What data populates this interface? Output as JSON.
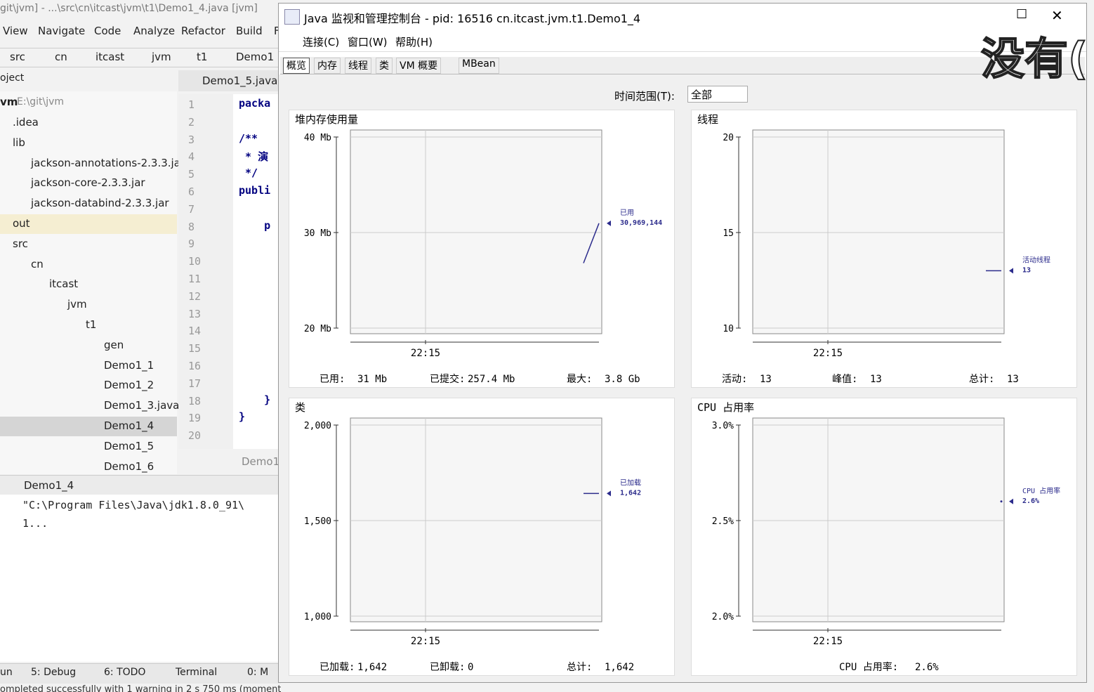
{
  "ide": {
    "title": "git\\jvm] - ...\\src\\cn\\itcast\\jvm\\t1\\Demo1_4.java [jvm]",
    "menu": [
      "View",
      "Navigate",
      "Code",
      "Analyze",
      "Refactor",
      "Build",
      "F"
    ],
    "breadcrumb": [
      "src",
      "cn",
      "itcast",
      "jvm",
      "t1",
      "Demo1"
    ],
    "project_label": "oject",
    "tree_root": "vm",
    "tree_root_path": "E:\\git\\jvm",
    "tree": [
      ".idea",
      "lib",
      "jackson-annotations-2.3.3.jar",
      "jackson-core-2.3.3.jar",
      "jackson-databind-2.3.3.jar",
      "out",
      "src",
      "cn",
      "itcast",
      "jvm",
      "t1",
      "gen",
      "Demo1_1",
      "Demo1_2",
      "Demo1_3.java",
      "Demo1_4",
      "Demo1_5",
      "Demo1_6"
    ],
    "editor_tab": "Demo1_5.java",
    "line_numbers": [
      1,
      2,
      3,
      4,
      5,
      6,
      7,
      8,
      9,
      10,
      11,
      12,
      13,
      14,
      15,
      16,
      17,
      18,
      19,
      20
    ],
    "code": [
      "packa",
      null,
      "/**",
      " * 演",
      " */",
      "publi",
      null,
      "    p",
      null,
      null,
      null,
      null,
      null,
      null,
      null,
      null,
      null,
      "    }",
      "}",
      null
    ],
    "editor_footer": "Demo1",
    "run_tab": "Demo1_4",
    "run_output": [
      "\"C:\\Program Files\\Java\\jdk1.8.0_91\\",
      "1..."
    ],
    "bottom_tabs": [
      "un",
      "5: Debug",
      "6: TODO",
      "Terminal",
      "0: M"
    ],
    "status": "ompleted successfully with 1 warning in 2 s 750 ms (moments ago)"
  },
  "jconsole": {
    "title": "Java 监视和管理控制台 - pid: 16516 cn.itcast.jvm.t1.Demo1_4",
    "menu": [
      "连接(C)",
      "窗口(W)",
      "帮助(H)"
    ],
    "tabs": [
      "概览",
      "内存",
      "线程",
      "类",
      "VM 概要",
      "MBean"
    ],
    "time_range_label": "时间范围(T):",
    "time_range_value": "全部",
    "overlay_text": "没有(",
    "charts": [
      {
        "type": "line",
        "title": "堆内存使用量",
        "ylim": [
          20,
          40
        ],
        "yticks": [
          {
            "value": 20,
            "label": "20 Mb"
          },
          {
            "value": 30,
            "label": "30 Mb"
          },
          {
            "value": 40,
            "label": "40 Mb"
          }
        ],
        "xticks": [
          "22:15"
        ],
        "series": [
          {
            "name": "已用",
            "color": "#2c2c8c",
            "values": [
              26.8,
              30.969144
            ],
            "value_labels": [
              "30,969,144"
            ]
          }
        ],
        "stats": [
          {
            "label": "已用:",
            "value": "31  Mb"
          },
          {
            "label": "已提交:",
            "value": "257.4  Mb"
          },
          {
            "label": "最大:",
            "value": "3.8  Gb"
          }
        ]
      },
      {
        "type": "line",
        "title": "线程",
        "ylim": [
          10,
          20
        ],
        "yticks": [
          10,
          15,
          20
        ],
        "xticks": [
          "22:15"
        ],
        "series": [
          {
            "name": "活动线程",
            "color": "#2c2c8c",
            "values": [
              13,
              13
            ],
            "value_labels": [
              "13"
            ]
          }
        ],
        "stats": [
          {
            "label": "活动:",
            "value": "13"
          },
          {
            "label": "峰值:",
            "value": "13"
          },
          {
            "label": "总计:",
            "value": "13"
          }
        ]
      },
      {
        "type": "line",
        "title": "类",
        "ylim": [
          1000,
          2000
        ],
        "yticks": [
          {
            "value": 1000,
            "label": "1,000"
          },
          {
            "value": 1500,
            "label": "1,500"
          },
          {
            "value": 2000,
            "label": "2,000"
          }
        ],
        "xticks": [
          "22:15"
        ],
        "series": [
          {
            "name": "已加载",
            "color": "#2c2c8c",
            "values": [
              1642,
              1642
            ],
            "value_labels": [
              "1,642"
            ]
          }
        ],
        "stats": [
          {
            "label": "已加载:",
            "value": "1,642"
          },
          {
            "label": "已卸载:",
            "value": "0"
          },
          {
            "label": "总计:",
            "value": "1,642"
          }
        ]
      },
      {
        "type": "line",
        "title": "CPU 占用率",
        "ylim": [
          2.0,
          3.0
        ],
        "yticks": [
          {
            "value": 2.0,
            "label": "2.0%"
          },
          {
            "value": 2.5,
            "label": "2.5%"
          },
          {
            "value": 3.0,
            "label": "3.0%"
          }
        ],
        "xticks": [
          "22:15"
        ],
        "series": [
          {
            "name": "CPU 占用率",
            "color": "#2c2c8c",
            "values": [
              2.6
            ],
            "value_labels": [
              "2.6%"
            ]
          }
        ],
        "stats": [
          {
            "label": "CPU 占用率:",
            "value": "2.6%"
          }
        ]
      }
    ]
  }
}
